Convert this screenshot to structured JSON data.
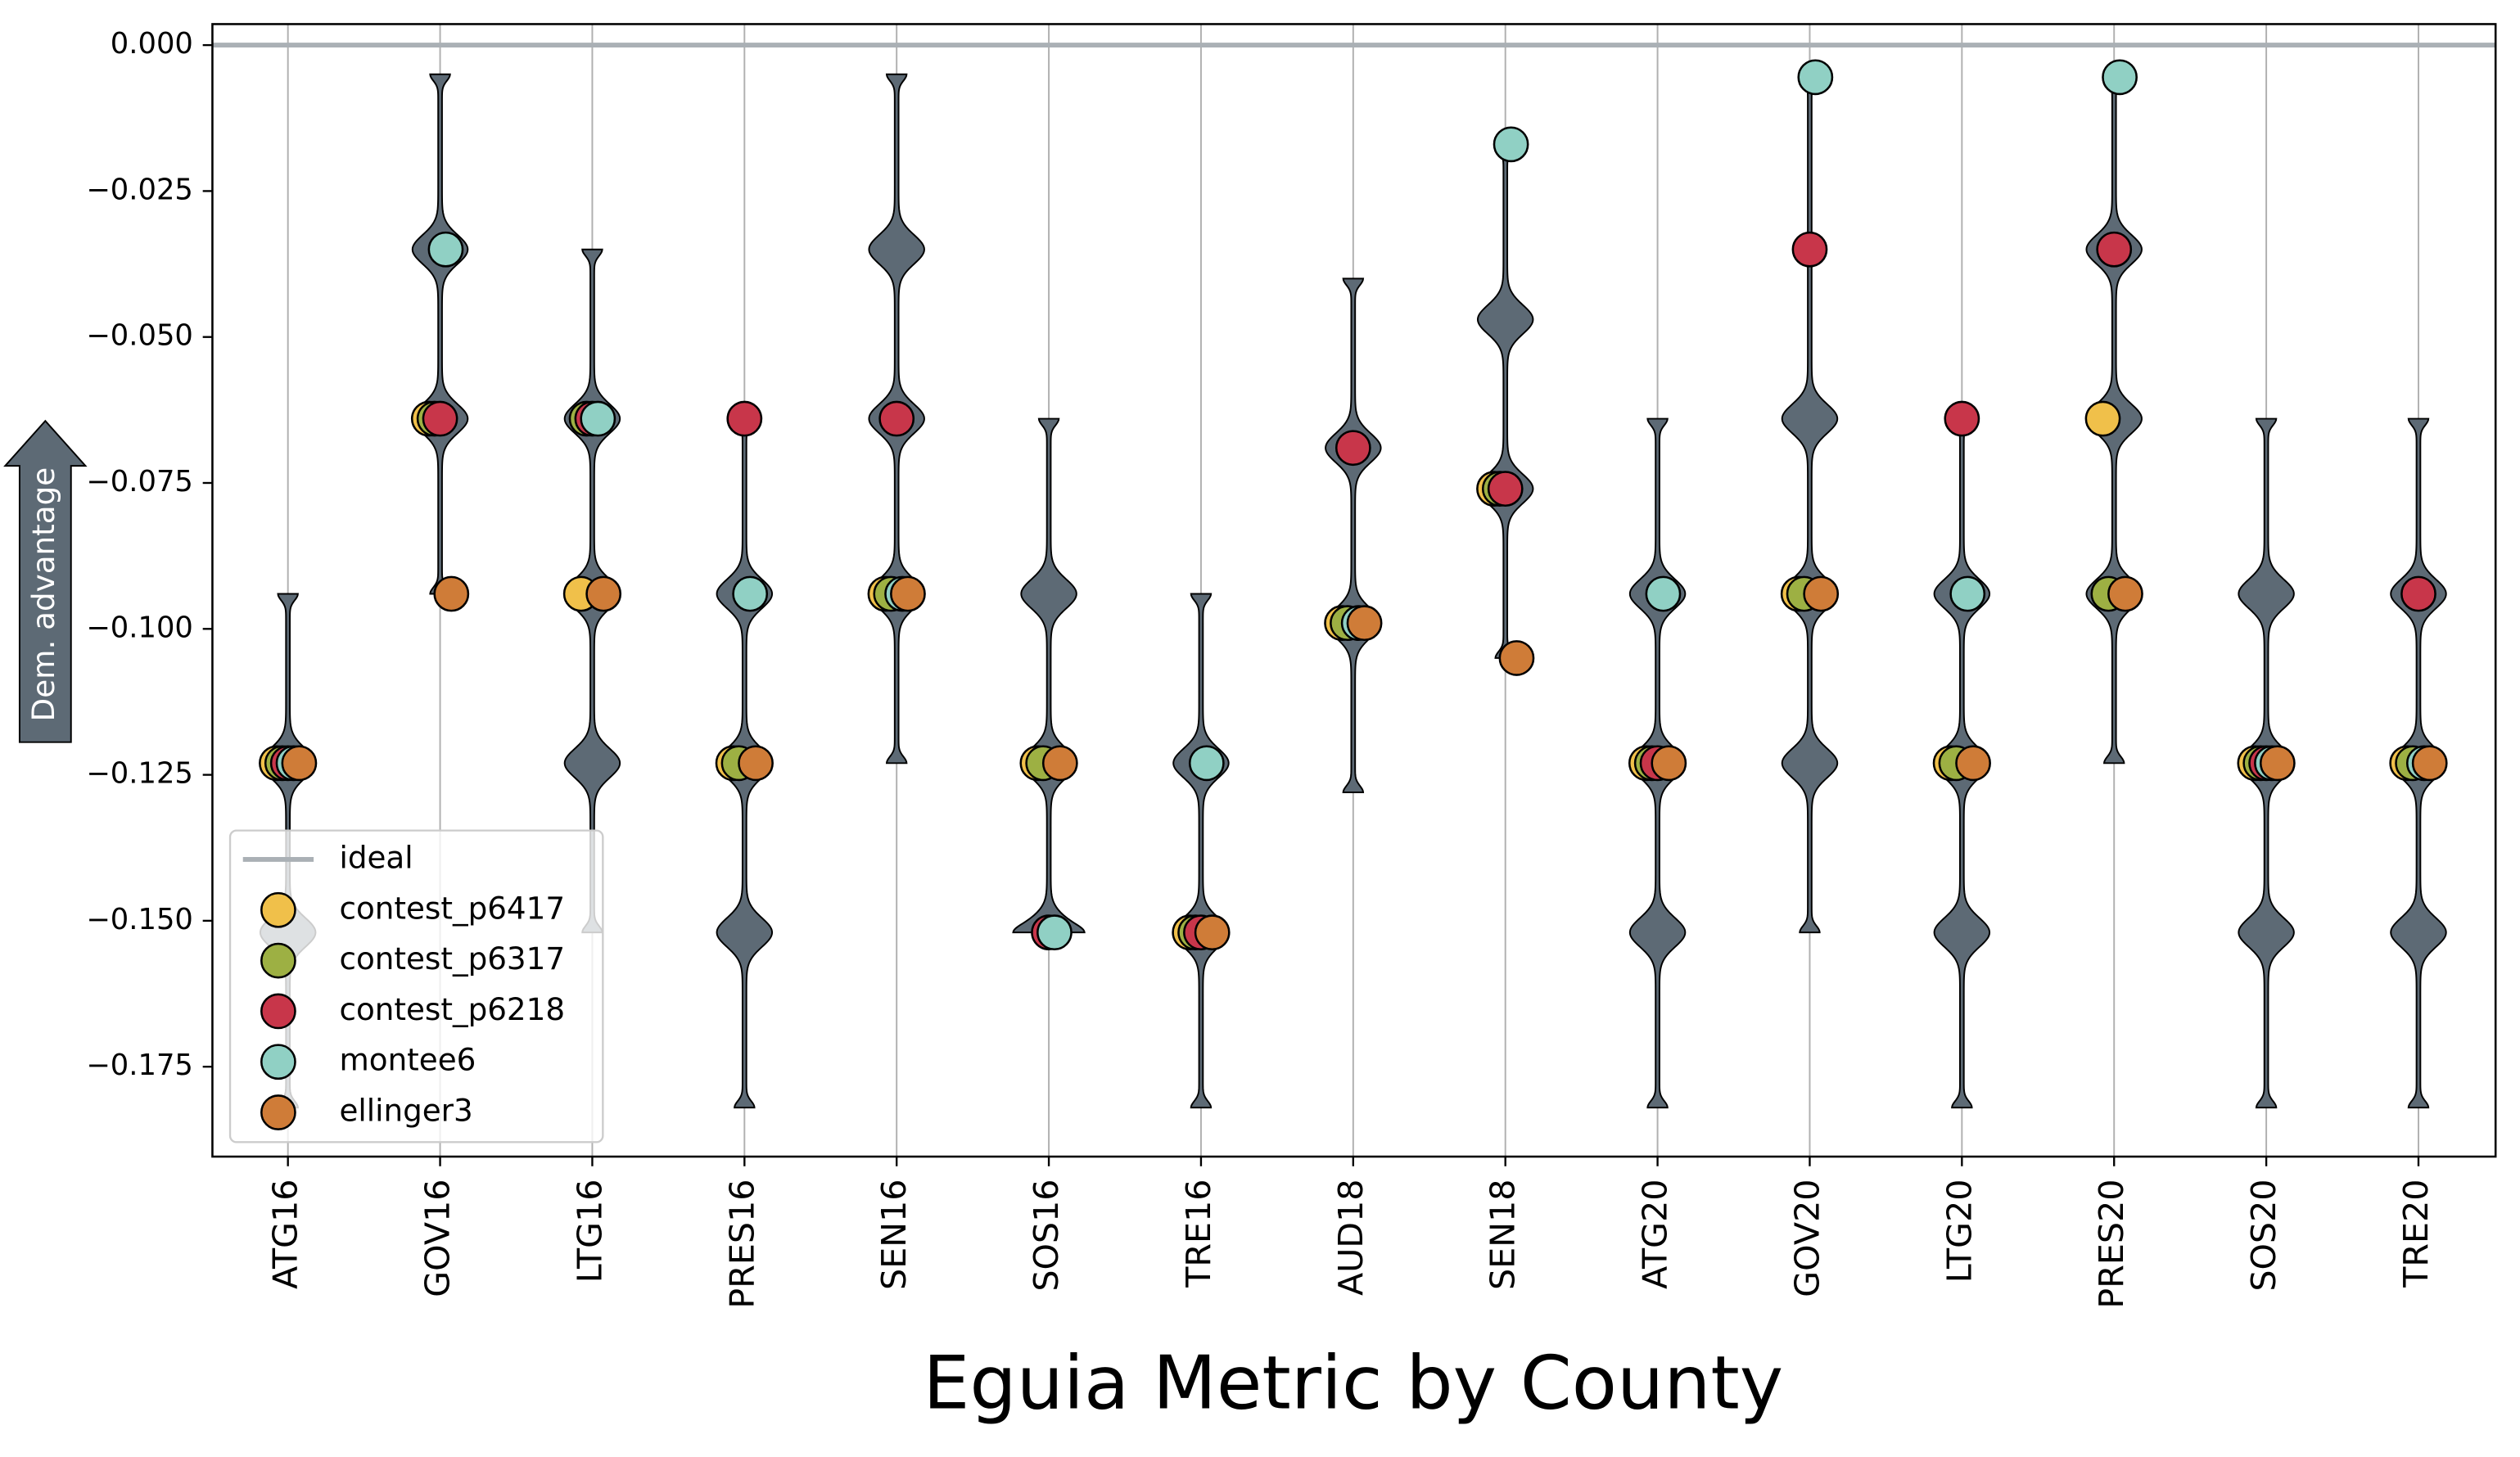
{
  "chart_data": {
    "type": "violin",
    "title": "Eguia Metric by County",
    "y_label": "Dem. advantage",
    "categories": [
      "ATG16",
      "GOV16",
      "LTG16",
      "PRES16",
      "SEN16",
      "SOS16",
      "TRE16",
      "AUD18",
      "SEN18",
      "ATG20",
      "GOV20",
      "LTG20",
      "PRES20",
      "SOS20",
      "TRE20"
    ],
    "ylim": [
      -0.1904,
      0.0036
    ],
    "yticks": [
      {
        "value": 0,
        "label": "0.000"
      },
      {
        "value": -0.025,
        "label": "−0.025"
      },
      {
        "value": -0.05,
        "label": "−0.050"
      },
      {
        "value": -0.075,
        "label": "−0.075"
      },
      {
        "value": -0.1,
        "label": "−0.100"
      },
      {
        "value": -0.125,
        "label": "−0.125"
      },
      {
        "value": -0.15,
        "label": "−0.150"
      },
      {
        "value": -0.175,
        "label": "−0.175"
      }
    ],
    "grid": true,
    "violin_color": "#5d6a75",
    "violins": [
      {
        "min": -0.182,
        "max": -0.094,
        "modes": [
          -0.123,
          -0.152
        ]
      },
      {
        "min": -0.094,
        "max": -0.005,
        "modes": [
          -0.035,
          -0.064
        ]
      },
      {
        "min": -0.152,
        "max": -0.035,
        "modes": [
          -0.064,
          -0.094,
          -0.123
        ]
      },
      {
        "min": -0.182,
        "max": -0.064,
        "modes": [
          -0.094,
          -0.123,
          -0.152
        ]
      },
      {
        "min": -0.123,
        "max": -0.005,
        "modes": [
          -0.035,
          -0.064,
          -0.094
        ]
      },
      {
        "min": -0.152,
        "max": -0.064,
        "modes": [
          -0.094,
          -0.123,
          -0.152
        ]
      },
      {
        "min": -0.182,
        "max": -0.094,
        "modes": [
          -0.123,
          -0.152
        ]
      },
      {
        "min": -0.128,
        "max": -0.04,
        "modes": [
          -0.069,
          -0.099
        ]
      },
      {
        "min": -0.105,
        "max": -0.017,
        "modes": [
          -0.047,
          -0.076
        ]
      },
      {
        "min": -0.182,
        "max": -0.064,
        "modes": [
          -0.094,
          -0.123,
          -0.152
        ]
      },
      {
        "min": -0.152,
        "max": -0.005,
        "modes": [
          -0.064,
          -0.094,
          -0.123
        ]
      },
      {
        "min": -0.182,
        "max": -0.064,
        "modes": [
          -0.094,
          -0.123,
          -0.152
        ]
      },
      {
        "min": -0.123,
        "max": -0.005,
        "modes": [
          -0.035,
          -0.064,
          -0.094
        ]
      },
      {
        "min": -0.182,
        "max": -0.064,
        "modes": [
          -0.094,
          -0.123,
          -0.152
        ]
      },
      {
        "min": -0.182,
        "max": -0.064,
        "modes": [
          -0.094,
          -0.123,
          -0.152
        ]
      }
    ],
    "ideal": {
      "name": "ideal",
      "value": 0,
      "color": "#aab0b5"
    },
    "legend": "lower left",
    "series": [
      {
        "name": "contest_p6417",
        "color": "#f0c04a",
        "values": [
          -0.123,
          -0.064,
          -0.094,
          -0.123,
          -0.094,
          -0.123,
          -0.152,
          -0.099,
          -0.076,
          -0.123,
          -0.094,
          -0.123,
          -0.064,
          -0.123,
          -0.123
        ]
      },
      {
        "name": "contest_p6317",
        "color": "#9db043",
        "values": [
          -0.123,
          -0.064,
          -0.064,
          -0.123,
          -0.094,
          -0.123,
          -0.152,
          -0.099,
          -0.076,
          -0.123,
          -0.094,
          -0.123,
          -0.094,
          -0.123,
          -0.123
        ]
      },
      {
        "name": "contest_p6218",
        "color": "#c8364a",
        "values": [
          -0.123,
          -0.064,
          -0.064,
          -0.064,
          -0.064,
          -0.152,
          -0.152,
          -0.069,
          -0.076,
          -0.123,
          -0.035,
          -0.064,
          -0.035,
          -0.123,
          -0.094
        ]
      },
      {
        "name": "montee6",
        "color": "#90d0c4",
        "values": [
          -0.123,
          -0.035,
          -0.064,
          -0.094,
          -0.094,
          -0.152,
          -0.123,
          -0.099,
          -0.017,
          -0.094,
          -0.0055,
          -0.094,
          -0.0055,
          -0.123,
          -0.123
        ]
      },
      {
        "name": "ellinger3",
        "color": "#cf7c38",
        "values": [
          -0.123,
          -0.094,
          -0.094,
          -0.123,
          -0.094,
          -0.123,
          -0.152,
          -0.099,
          -0.105,
          -0.123,
          -0.094,
          -0.123,
          -0.094,
          -0.123,
          -0.123
        ]
      }
    ]
  }
}
